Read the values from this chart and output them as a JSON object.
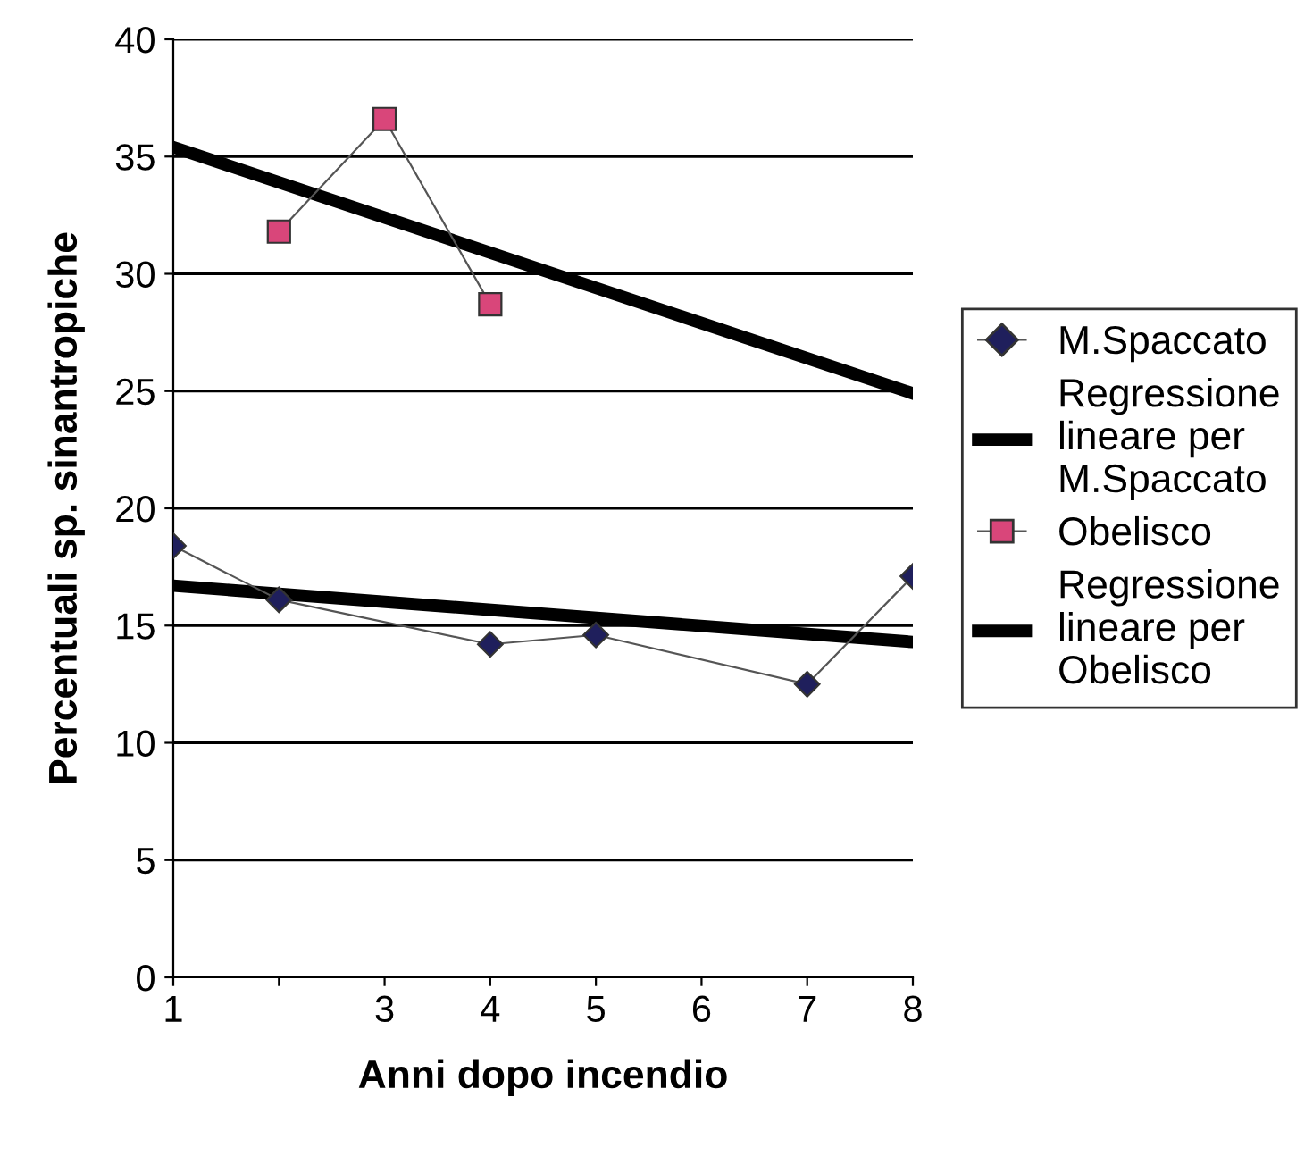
{
  "chart_data": {
    "type": "line",
    "xlabel": "Anni dopo incendio",
    "ylabel": "Percentuali sp. sinantropiche",
    "xlim": [
      1,
      8
    ],
    "xticks": [
      1,
      {
        "value": 2,
        "label": null
      },
      3,
      4,
      5,
      6,
      7,
      8
    ],
    "ylim": [
      0,
      40
    ],
    "yticks": [
      0,
      5,
      10,
      15,
      20,
      25,
      30,
      35,
      40
    ],
    "grid": "y",
    "legend": "right",
    "series": [
      {
        "name": "M.Spaccato",
        "color": "#1f1f5c",
        "marker": "diamond",
        "x": [
          1,
          2,
          4,
          5,
          7,
          8
        ],
        "values": [
          18.4,
          16.1,
          14.2,
          14.6,
          12.5,
          17.1
        ]
      },
      {
        "name": "Regressione\nlineare per\nM.Spaccato",
        "color": "#000000",
        "marker": "none",
        "x": [
          1,
          8
        ],
        "values": [
          16.7,
          14.3
        ]
      },
      {
        "name": "Obelisco",
        "color": "#d9467a",
        "marker": "square",
        "x": [
          2,
          3,
          4
        ],
        "values": [
          31.8,
          36.6,
          28.7
        ]
      },
      {
        "name": "Regressione\nlineare per\nObelisco",
        "color": "#000000",
        "marker": "none",
        "x": [
          1,
          8
        ],
        "values": [
          35.4,
          24.9
        ]
      }
    ]
  }
}
